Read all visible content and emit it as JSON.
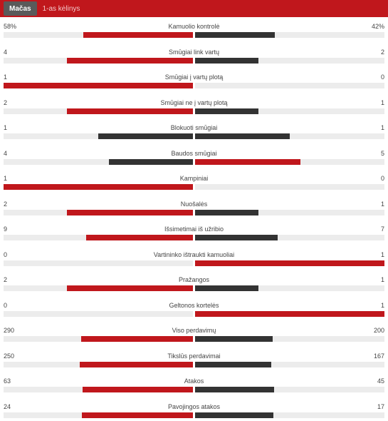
{
  "tabs": [
    {
      "label": "Mačas",
      "active": true
    },
    {
      "label": "1-as kėlinys",
      "active": false
    }
  ],
  "colors": {
    "winner": "#c0171c",
    "loser": "#333333",
    "track": "#ececec",
    "header": "#c0171c"
  },
  "stats": [
    {
      "label": "Kamuolio kontrolė",
      "home": "58%",
      "away": "42%",
      "h": 58,
      "a": 42
    },
    {
      "label": "Smūgiai link vartų",
      "home": "4",
      "away": "2",
      "h": 4,
      "a": 2
    },
    {
      "label": "Smūgiai į vartų plotą",
      "home": "1",
      "away": "0",
      "h": 1,
      "a": 0
    },
    {
      "label": "Smūgiai ne į vartų plotą",
      "home": "2",
      "away": "1",
      "h": 2,
      "a": 1
    },
    {
      "label": "Blokuoti smūgiai",
      "home": "1",
      "away": "1",
      "h": 1,
      "a": 1
    },
    {
      "label": "Baudos smūgiai",
      "home": "4",
      "away": "5",
      "h": 4,
      "a": 5
    },
    {
      "label": "Kampiniai",
      "home": "1",
      "away": "0",
      "h": 1,
      "a": 0
    },
    {
      "label": "Nuošalės",
      "home": "2",
      "away": "1",
      "h": 2,
      "a": 1
    },
    {
      "label": "Išsimetimai iš užribio",
      "home": "9",
      "away": "7",
      "h": 9,
      "a": 7
    },
    {
      "label": "Vartininko ištraukti kamuoliai",
      "home": "0",
      "away": "1",
      "h": 0,
      "a": 1
    },
    {
      "label": "Pražangos",
      "home": "2",
      "away": "1",
      "h": 2,
      "a": 1
    },
    {
      "label": "Geltonos kortelės",
      "home": "0",
      "away": "1",
      "h": 0,
      "a": 1
    },
    {
      "label": "Viso perdavimų",
      "home": "290",
      "away": "200",
      "h": 290,
      "a": 200
    },
    {
      "label": "Tikslūs perdavimai",
      "home": "250",
      "away": "167",
      "h": 250,
      "a": 167
    },
    {
      "label": "Atakos",
      "home": "63",
      "away": "45",
      "h": 63,
      "a": 45
    },
    {
      "label": "Pavojingos atakos",
      "home": "24",
      "away": "17",
      "h": 24,
      "a": 17
    }
  ]
}
